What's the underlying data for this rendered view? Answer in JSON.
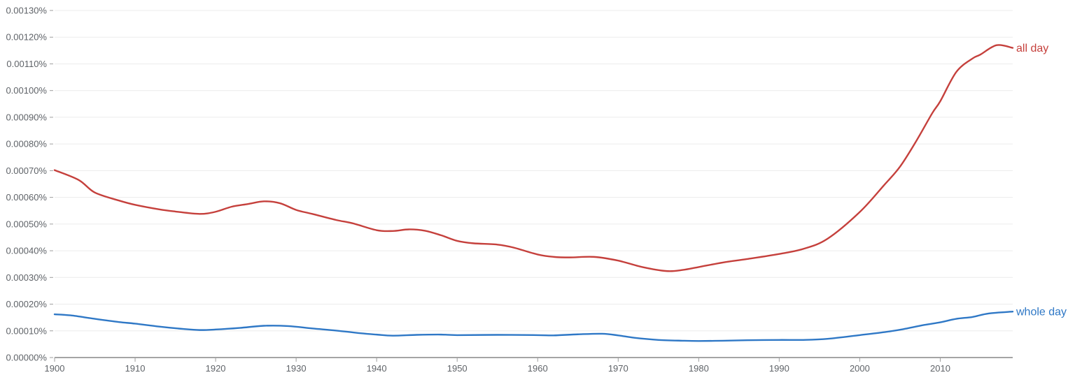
{
  "chart_data": {
    "type": "line",
    "title": "",
    "xlabel": "",
    "ylabel": "",
    "xlim": [
      1900,
      2019
    ],
    "ylim": [
      0,
      0.0013
    ],
    "grid": true,
    "y_ticks": [
      0,
      0.0001,
      0.0002,
      0.0003,
      0.0004,
      0.0005,
      0.0006,
      0.0007,
      0.0008,
      0.0009,
      0.001,
      0.0011,
      0.0012,
      0.0013
    ],
    "y_tick_labels": [
      "0.00000%",
      "0.00010%",
      "0.00020%",
      "0.00030%",
      "0.00040%",
      "0.00050%",
      "0.00060%",
      "0.00070%",
      "0.00080%",
      "0.00090%",
      "0.00100%",
      "0.00110%",
      "0.00120%",
      "0.00130%"
    ],
    "x_ticks": [
      1900,
      1910,
      1920,
      1930,
      1940,
      1950,
      1960,
      1970,
      1980,
      1990,
      2000,
      2010
    ],
    "x_tick_labels": [
      "1900",
      "1910",
      "1920",
      "1930",
      "1940",
      "1950",
      "1960",
      "1970",
      "1980",
      "1990",
      "2000",
      "2010"
    ],
    "series": [
      {
        "name": "all day",
        "color": "#c5403c",
        "x": [
          1900,
          1903,
          1905,
          1908,
          1910,
          1913,
          1915,
          1918,
          1920,
          1922,
          1924,
          1926,
          1928,
          1930,
          1932,
          1935,
          1937,
          1940,
          1942,
          1944,
          1946,
          1948,
          1950,
          1952,
          1955,
          1957,
          1960,
          1962,
          1964,
          1967,
          1970,
          1973,
          1976,
          1978,
          1980,
          1983,
          1986,
          1990,
          1993,
          1996,
          2000,
          2003,
          2005,
          2007,
          2009,
          2010,
          2012,
          2014,
          2015,
          2017,
          2019
        ],
        "values": [
          0.000702,
          0.000665,
          0.000618,
          0.000588,
          0.000572,
          0.000555,
          0.000547,
          0.000538,
          0.000546,
          0.000565,
          0.000575,
          0.000585,
          0.000578,
          0.000553,
          0.000538,
          0.000515,
          0.000503,
          0.000477,
          0.000474,
          0.00048,
          0.000475,
          0.000458,
          0.000437,
          0.000428,
          0.000423,
          0.000412,
          0.000386,
          0.000377,
          0.000375,
          0.000377,
          0.000363,
          0.000339,
          0.000324,
          0.000328,
          0.000339,
          0.000356,
          0.000369,
          0.000388,
          0.000407,
          0.000445,
          0.000545,
          0.000645,
          0.000715,
          0.00081,
          0.000915,
          0.00096,
          0.00107,
          0.00112,
          0.001135,
          0.00117,
          0.00116
        ]
      },
      {
        "name": "whole day",
        "color": "#2f78c6",
        "x": [
          1900,
          1902,
          1905,
          1908,
          1910,
          1913,
          1916,
          1918,
          1920,
          1923,
          1926,
          1929,
          1932,
          1935,
          1938,
          1940,
          1942,
          1945,
          1948,
          1950,
          1955,
          1960,
          1962,
          1965,
          1968,
          1970,
          1972,
          1975,
          1978,
          1980,
          1983,
          1986,
          1990,
          1993,
          1996,
          2000,
          2003,
          2005,
          2008,
          2010,
          2012,
          2014,
          2016,
          2019
        ],
        "values": [
          0.000162,
          0.000158,
          0.000145,
          0.000133,
          0.000127,
          0.000116,
          0.000107,
          0.000103,
          0.000105,
          0.000111,
          0.000119,
          0.000118,
          0.000109,
          0.000101,
          9.1e-05,
          8.6e-05,
          8.2e-05,
          8.5e-05,
          8.6e-05,
          8.4e-05,
          8.5e-05,
          8.4e-05,
          8.3e-05,
          8.7e-05,
          8.9e-05,
          8.3e-05,
          7.4e-05,
          6.6e-05,
          6.3e-05,
          6.2e-05,
          6.3e-05,
          6.5e-05,
          6.6e-05,
          6.6e-05,
          7e-05,
          8.4e-05,
          9.5e-05,
          0.000104,
          0.000122,
          0.000132,
          0.000145,
          0.000152,
          0.000165,
          0.000172
        ]
      }
    ]
  }
}
